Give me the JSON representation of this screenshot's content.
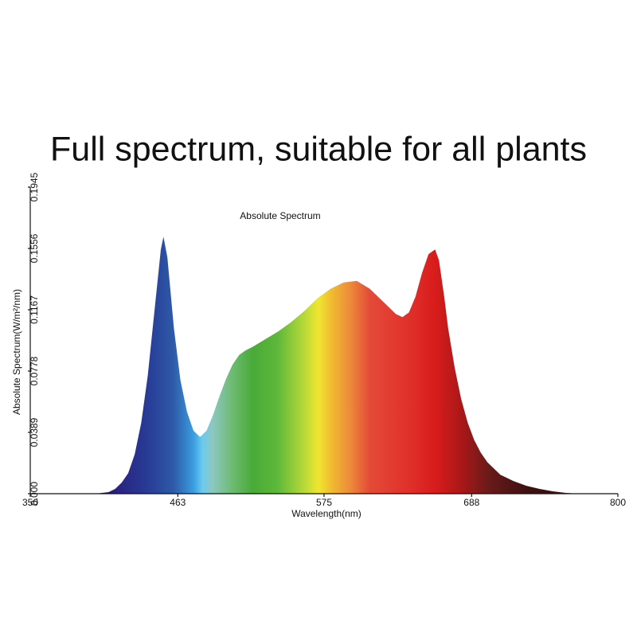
{
  "headline": "Full spectrum, suitable for all plants",
  "chart_data": {
    "type": "area",
    "title": "Absolute Spectrum",
    "x_label": "Wavelength(nm)",
    "y_label": "Absolute Spectrum(W/m²/nm)",
    "x": [
      400,
      410,
      415,
      420,
      425,
      430,
      435,
      440,
      445,
      450,
      452,
      455,
      460,
      465,
      470,
      475,
      480,
      485,
      490,
      495,
      500,
      505,
      510,
      515,
      520,
      530,
      540,
      550,
      560,
      570,
      580,
      590,
      600,
      610,
      620,
      630,
      635,
      640,
      645,
      650,
      655,
      660,
      663,
      667,
      670,
      675,
      680,
      685,
      690,
      695,
      700,
      710,
      720,
      730,
      740,
      750,
      760,
      770
    ],
    "values": [
      0,
      0.001,
      0.003,
      0.007,
      0.013,
      0.025,
      0.045,
      0.075,
      0.115,
      0.155,
      0.163,
      0.15,
      0.105,
      0.072,
      0.052,
      0.04,
      0.036,
      0.04,
      0.05,
      0.062,
      0.073,
      0.082,
      0.088,
      0.091,
      0.093,
      0.098,
      0.103,
      0.109,
      0.116,
      0.124,
      0.13,
      0.134,
      0.135,
      0.13,
      0.122,
      0.114,
      0.112,
      0.115,
      0.125,
      0.14,
      0.152,
      0.155,
      0.148,
      0.125,
      0.105,
      0.08,
      0.06,
      0.045,
      0.034,
      0.026,
      0.02,
      0.012,
      0.008,
      0.005,
      0.003,
      0.0015,
      0.0005,
      0
    ],
    "xlim": [
      350,
      800
    ],
    "xticks": [
      350,
      463,
      575,
      688,
      800
    ],
    "ylim": [
      0,
      0.1945
    ],
    "yticks": [
      {
        "value": 0,
        "label": "0.000"
      },
      0.0389,
      0.0778,
      0.1167,
      0.1556,
      0.1945
    ]
  }
}
